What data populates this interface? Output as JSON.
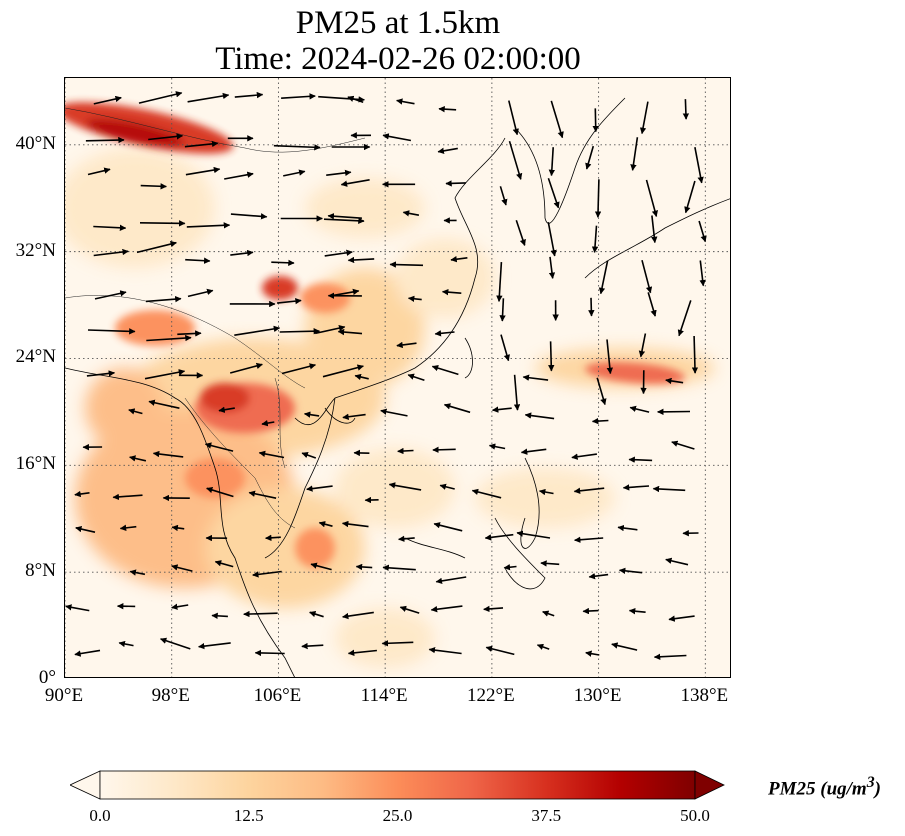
{
  "title": {
    "line1": "PM25 at 1.5km",
    "line2": "Time: 2024-02-26 02:00:00"
  },
  "map": {
    "extent": {
      "lon_min": 90,
      "lon_max": 140,
      "lat_min": 0,
      "lat_max": 45
    },
    "xticks": [
      {
        "lon": 90,
        "label": "90°E"
      },
      {
        "lon": 98,
        "label": "98°E"
      },
      {
        "lon": 106,
        "label": "106°E"
      },
      {
        "lon": 114,
        "label": "114°E"
      },
      {
        "lon": 122,
        "label": "122°E"
      },
      {
        "lon": 130,
        "label": "130°E"
      },
      {
        "lon": 138,
        "label": "138°E"
      }
    ],
    "yticks": [
      {
        "lat": 0,
        "label": "0°"
      },
      {
        "lat": 8,
        "label": "8°N"
      },
      {
        "lat": 16,
        "label": "16°N"
      },
      {
        "lat": 24,
        "label": "24°N"
      },
      {
        "lat": 32,
        "label": "32°N"
      },
      {
        "lat": 40,
        "label": "40°N"
      }
    ],
    "gridlines": "dotted",
    "features": [
      "coastlines",
      "country-borders",
      "wind-vectors",
      "pm25-filled-contours"
    ]
  },
  "colorbar": {
    "colormap": "OrRd",
    "colors": [
      "#fff7ec",
      "#fee8c8",
      "#fdd49e",
      "#fdbb84",
      "#fc8d59",
      "#ef6548",
      "#d7301f",
      "#b30000",
      "#7f0000"
    ],
    "min": 0.0,
    "max": 50.0,
    "extend": "both",
    "ticks": [
      "0.0",
      "12.5",
      "25.0",
      "37.5",
      "50.0"
    ],
    "label": "PM25 (ug/m",
    "label_sup": "3",
    "label_close": ")"
  }
}
